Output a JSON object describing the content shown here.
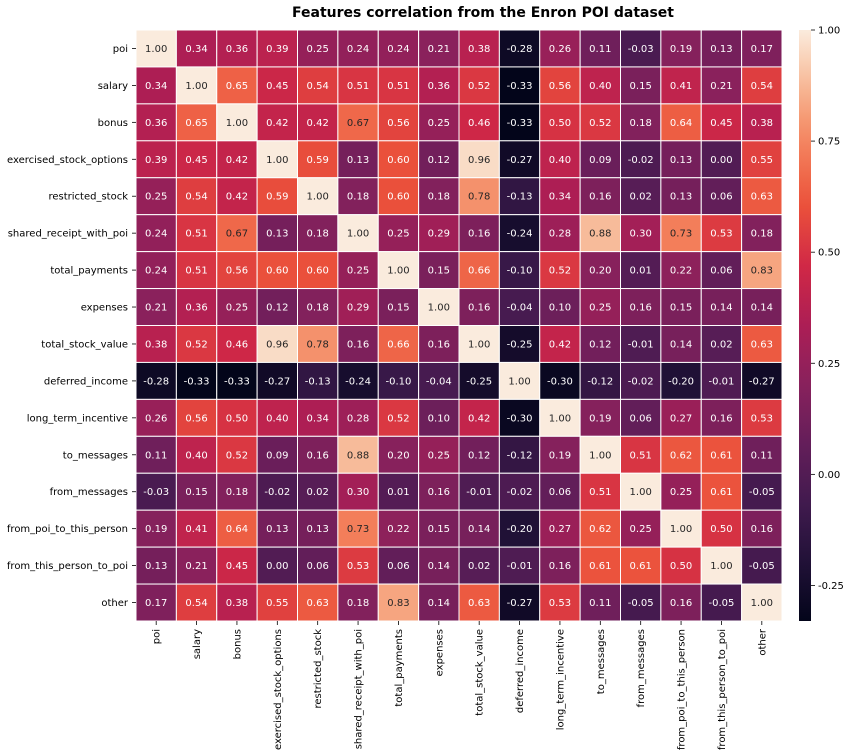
{
  "chart_data": {
    "type": "heatmap",
    "title": "Features correlation from the Enron POI dataset",
    "row_labels": [
      "poi",
      "salary",
      "bonus",
      "exercised_stock_options",
      "restricted_stock",
      "shared_receipt_with_poi",
      "total_payments",
      "expenses",
      "total_stock_value",
      "deferred_income",
      "long_term_incentive",
      "to_messages",
      "from_messages",
      "from_poi_to_this_person",
      "from_this_person_to_poi",
      "other"
    ],
    "col_labels": [
      "poi",
      "salary",
      "bonus",
      "exercised_stock_options",
      "restricted_stock",
      "shared_receipt_with_poi",
      "total_payments",
      "expenses",
      "total_stock_value",
      "deferred_income",
      "long_term_incentive",
      "to_messages",
      "from_messages",
      "from_poi_to_this_person",
      "from_this_person_to_poi",
      "other"
    ],
    "matrix": [
      [
        1.0,
        0.34,
        0.36,
        0.39,
        0.25,
        0.24,
        0.24,
        0.21,
        0.38,
        -0.28,
        0.26,
        0.11,
        -0.03,
        0.19,
        0.13,
        0.17
      ],
      [
        0.34,
        1.0,
        0.65,
        0.45,
        0.54,
        0.51,
        0.51,
        0.36,
        0.52,
        -0.33,
        0.56,
        0.4,
        0.15,
        0.41,
        0.21,
        0.54
      ],
      [
        0.36,
        0.65,
        1.0,
        0.42,
        0.42,
        0.67,
        0.56,
        0.25,
        0.46,
        -0.33,
        0.5,
        0.52,
        0.18,
        0.64,
        0.45,
        0.38
      ],
      [
        0.39,
        0.45,
        0.42,
        1.0,
        0.59,
        0.13,
        0.6,
        0.12,
        0.96,
        -0.27,
        0.4,
        0.09,
        -0.02,
        0.13,
        0.0,
        0.55
      ],
      [
        0.25,
        0.54,
        0.42,
        0.59,
        1.0,
        0.18,
        0.6,
        0.18,
        0.78,
        -0.13,
        0.34,
        0.16,
        0.02,
        0.13,
        0.06,
        0.63
      ],
      [
        0.24,
        0.51,
        0.67,
        0.13,
        0.18,
        1.0,
        0.25,
        0.29,
        0.16,
        -0.24,
        0.28,
        0.88,
        0.3,
        0.73,
        0.53,
        0.18
      ],
      [
        0.24,
        0.51,
        0.56,
        0.6,
        0.6,
        0.25,
        1.0,
        0.15,
        0.66,
        -0.1,
        0.52,
        0.2,
        0.01,
        0.22,
        0.06,
        0.83
      ],
      [
        0.21,
        0.36,
        0.25,
        0.12,
        0.18,
        0.29,
        0.15,
        1.0,
        0.16,
        -0.04,
        0.1,
        0.25,
        0.16,
        0.15,
        0.14,
        0.14
      ],
      [
        0.38,
        0.52,
        0.46,
        0.96,
        0.78,
        0.16,
        0.66,
        0.16,
        1.0,
        -0.25,
        0.42,
        0.12,
        -0.01,
        0.14,
        0.02,
        0.63
      ],
      [
        -0.28,
        -0.33,
        -0.33,
        -0.27,
        -0.13,
        -0.24,
        -0.1,
        -0.04,
        -0.25,
        1.0,
        -0.3,
        -0.12,
        -0.02,
        -0.2,
        -0.01,
        -0.27
      ],
      [
        0.26,
        0.56,
        0.5,
        0.4,
        0.34,
        0.28,
        0.52,
        0.1,
        0.42,
        -0.3,
        1.0,
        0.19,
        0.06,
        0.27,
        0.16,
        0.53
      ],
      [
        0.11,
        0.4,
        0.52,
        0.09,
        0.16,
        0.88,
        0.2,
        0.25,
        0.12,
        -0.12,
        0.19,
        1.0,
        0.51,
        0.62,
        0.61,
        0.11
      ],
      [
        -0.03,
        0.15,
        0.18,
        -0.02,
        0.02,
        0.3,
        0.01,
        0.16,
        -0.01,
        -0.02,
        0.06,
        0.51,
        1.0,
        0.25,
        0.61,
        -0.05
      ],
      [
        0.19,
        0.41,
        0.64,
        0.13,
        0.13,
        0.73,
        0.22,
        0.15,
        0.14,
        -0.2,
        0.27,
        0.62,
        0.25,
        1.0,
        0.5,
        0.16
      ],
      [
        0.13,
        0.21,
        0.45,
        0.0,
        0.06,
        0.53,
        0.06,
        0.14,
        0.02,
        -0.01,
        0.16,
        0.61,
        0.61,
        0.5,
        1.0,
        -0.05
      ],
      [
        0.17,
        0.54,
        0.38,
        0.55,
        0.63,
        0.18,
        0.83,
        0.14,
        0.63,
        -0.27,
        0.53,
        0.11,
        -0.05,
        0.16,
        -0.05,
        1.0
      ]
    ],
    "value_format": "2 decimals",
    "colormap": "rocket",
    "vmin": -0.33,
    "vmax": 1.0,
    "colorbar_ticks": [
      "1.00",
      "0.75",
      "0.50",
      "0.25",
      "0.00",
      "-0.25"
    ],
    "colorbar_tick_values": [
      1.0,
      0.75,
      0.5,
      0.25,
      0.0,
      -0.25
    ],
    "annotations": true,
    "cell_separator_color": "#ffffff"
  }
}
